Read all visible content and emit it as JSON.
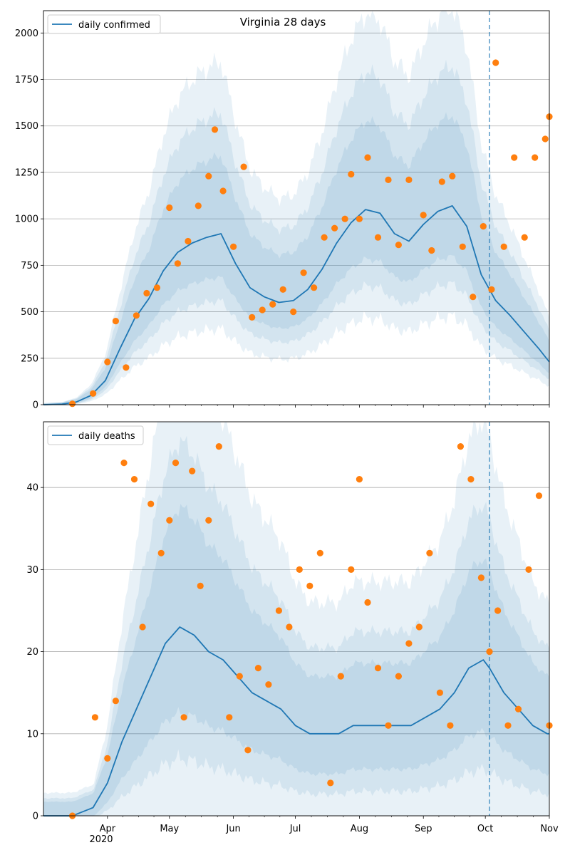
{
  "chart_data": [
    {
      "type": "line",
      "title": "Virginia 28 days",
      "xlabel": "",
      "ylabel": "",
      "xlim": [
        "2020-03-01",
        "2020-11-01"
      ],
      "ylim": [
        0,
        2120
      ],
      "grid": "y",
      "legend_position": "top-left",
      "forecast_start": "2020-10-03",
      "yticks": [
        0,
        250,
        500,
        750,
        1000,
        1250,
        1500,
        1750,
        2000
      ],
      "xticks": [
        "Apr",
        "May",
        "Jun",
        "Jul",
        "Aug",
        "Sep",
        "Oct",
        "Nov"
      ],
      "xticks_dates": [
        "2020-04-01",
        "2020-05-01",
        "2020-06-01",
        "2020-07-01",
        "2020-08-01",
        "2020-09-01",
        "2020-10-01",
        "2020-11-01"
      ],
      "year_label": "2020",
      "series": [
        {
          "name": "daily confirmed",
          "kind": "line",
          "color": "#1f77b4",
          "x": [
            "2020-03-01",
            "2020-03-10",
            "2020-03-17",
            "2020-03-24",
            "2020-03-31",
            "2020-04-07",
            "2020-04-14",
            "2020-04-21",
            "2020-04-28",
            "2020-05-05",
            "2020-05-12",
            "2020-05-19",
            "2020-05-26",
            "2020-06-02",
            "2020-06-09",
            "2020-06-16",
            "2020-06-23",
            "2020-06-30",
            "2020-07-07",
            "2020-07-14",
            "2020-07-21",
            "2020-07-28",
            "2020-08-04",
            "2020-08-11",
            "2020-08-18",
            "2020-08-25",
            "2020-09-01",
            "2020-09-08",
            "2020-09-15",
            "2020-09-22",
            "2020-09-29",
            "2020-10-06",
            "2020-10-13",
            "2020-10-20",
            "2020-10-27",
            "2020-11-01"
          ],
          "y": [
            0,
            3,
            15,
            50,
            130,
            300,
            460,
            570,
            720,
            820,
            870,
            900,
            920,
            760,
            630,
            580,
            550,
            560,
            620,
            730,
            870,
            980,
            1050,
            1030,
            920,
            880,
            970,
            1040,
            1070,
            960,
            700,
            560,
            480,
            390,
            300,
            230
          ]
        },
        {
          "name": "",
          "kind": "scatter",
          "color": "#ff7f0e",
          "x": [
            "2020-03-15",
            "2020-03-25",
            "2020-04-01",
            "2020-04-05",
            "2020-04-10",
            "2020-04-15",
            "2020-04-20",
            "2020-04-25",
            "2020-05-01",
            "2020-05-05",
            "2020-05-10",
            "2020-05-15",
            "2020-05-20",
            "2020-05-23",
            "2020-05-27",
            "2020-06-01",
            "2020-06-06",
            "2020-06-10",
            "2020-06-15",
            "2020-06-20",
            "2020-06-25",
            "2020-06-30",
            "2020-07-05",
            "2020-07-10",
            "2020-07-15",
            "2020-07-20",
            "2020-07-25",
            "2020-07-28",
            "2020-08-01",
            "2020-08-05",
            "2020-08-10",
            "2020-08-15",
            "2020-08-20",
            "2020-08-25",
            "2020-09-01",
            "2020-09-05",
            "2020-09-10",
            "2020-09-15",
            "2020-09-20",
            "2020-09-25",
            "2020-09-30",
            "2020-10-04",
            "2020-10-06",
            "2020-10-10",
            "2020-10-15",
            "2020-10-20",
            "2020-10-25",
            "2020-10-30",
            "2020-11-01"
          ],
          "y": [
            5,
            60,
            230,
            450,
            200,
            480,
            600,
            630,
            1060,
            760,
            880,
            1070,
            1230,
            1480,
            1150,
            850,
            1280,
            470,
            510,
            540,
            620,
            500,
            710,
            630,
            900,
            950,
            1000,
            1240,
            1000,
            1330,
            900,
            1210,
            860,
            1210,
            1020,
            830,
            1200,
            1230,
            850,
            580,
            960,
            620,
            1840,
            850,
            1330,
            900,
            1330,
            1430,
            1550
          ]
        }
      ]
    },
    {
      "type": "line",
      "title": "",
      "xlabel": "",
      "ylabel": "",
      "xlim": [
        "2020-03-01",
        "2020-11-01"
      ],
      "ylim": [
        0,
        48
      ],
      "grid": "y",
      "legend_position": "top-left",
      "forecast_start": "2020-10-03",
      "yticks": [
        0,
        10,
        20,
        30,
        40
      ],
      "xticks": [
        "Apr",
        "May",
        "Jun",
        "Jul",
        "Aug",
        "Sep",
        "Oct",
        "Nov"
      ],
      "xticks_dates": [
        "2020-04-01",
        "2020-05-01",
        "2020-06-01",
        "2020-07-01",
        "2020-08-01",
        "2020-09-01",
        "2020-10-01",
        "2020-11-01"
      ],
      "year_label": "2020",
      "series": [
        {
          "name": "daily deaths",
          "kind": "line",
          "color": "#1f77b4",
          "x": [
            "2020-03-01",
            "2020-03-15",
            "2020-03-25",
            "2020-04-01",
            "2020-04-08",
            "2020-04-15",
            "2020-04-22",
            "2020-04-29",
            "2020-05-06",
            "2020-05-13",
            "2020-05-20",
            "2020-05-27",
            "2020-06-03",
            "2020-06-10",
            "2020-06-17",
            "2020-06-24",
            "2020-07-01",
            "2020-07-08",
            "2020-07-15",
            "2020-07-22",
            "2020-07-29",
            "2020-08-05",
            "2020-08-12",
            "2020-08-19",
            "2020-08-26",
            "2020-09-02",
            "2020-09-09",
            "2020-09-16",
            "2020-09-23",
            "2020-09-30",
            "2020-10-03",
            "2020-10-10",
            "2020-10-17",
            "2020-10-24",
            "2020-10-31",
            "2020-11-01"
          ],
          "y": [
            0,
            0,
            1,
            4,
            9,
            13,
            17,
            21,
            23,
            22,
            20,
            19,
            17,
            15,
            14,
            13,
            11,
            10,
            10,
            10,
            11,
            11,
            11,
            11,
            11,
            12,
            13,
            15,
            18,
            19,
            18,
            15,
            13,
            11,
            10,
            10
          ]
        },
        {
          "name": "",
          "kind": "scatter",
          "color": "#ff7f0e",
          "x": [
            "2020-03-15",
            "2020-03-26",
            "2020-04-01",
            "2020-04-05",
            "2020-04-09",
            "2020-04-14",
            "2020-04-18",
            "2020-04-22",
            "2020-04-27",
            "2020-05-01",
            "2020-05-04",
            "2020-05-08",
            "2020-05-12",
            "2020-05-16",
            "2020-05-20",
            "2020-05-25",
            "2020-05-30",
            "2020-06-04",
            "2020-06-08",
            "2020-06-13",
            "2020-06-18",
            "2020-06-23",
            "2020-06-28",
            "2020-07-03",
            "2020-07-08",
            "2020-07-13",
            "2020-07-18",
            "2020-07-23",
            "2020-07-28",
            "2020-08-01",
            "2020-08-05",
            "2020-08-10",
            "2020-08-15",
            "2020-08-20",
            "2020-08-25",
            "2020-08-30",
            "2020-09-04",
            "2020-09-09",
            "2020-09-14",
            "2020-09-19",
            "2020-09-24",
            "2020-09-29",
            "2020-10-03",
            "2020-10-07",
            "2020-10-12",
            "2020-10-17",
            "2020-10-22",
            "2020-10-27",
            "2020-11-01"
          ],
          "y": [
            0,
            12,
            7,
            14,
            43,
            41,
            23,
            38,
            32,
            36,
            43,
            12,
            42,
            28,
            36,
            45,
            12,
            17,
            8,
            18,
            16,
            25,
            23,
            30,
            28,
            32,
            4,
            17,
            30,
            41,
            26,
            18,
            11,
            17,
            21,
            23,
            32,
            15,
            11,
            45,
            41,
            29,
            20,
            25,
            11,
            13,
            30,
            39,
            11
          ]
        }
      ]
    }
  ]
}
